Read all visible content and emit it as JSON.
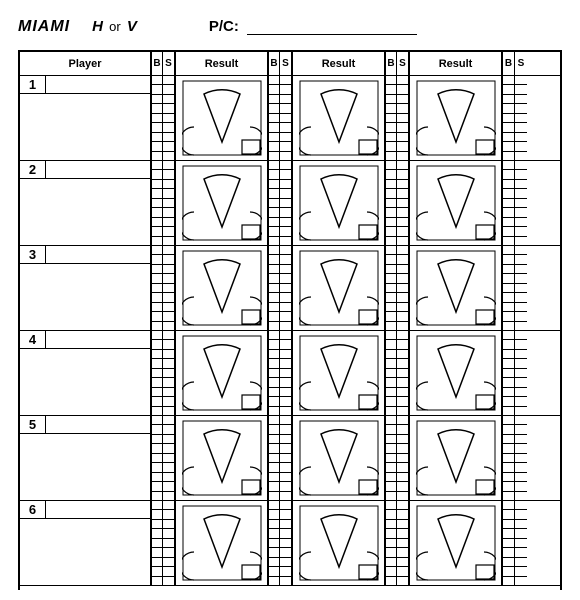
{
  "header": {
    "team": "MIAMI",
    "h": "H",
    "or": "or",
    "v": "V",
    "pc_label": "P/C:"
  },
  "columns": {
    "player": "Player",
    "b": "B",
    "s": "S",
    "result": "Result"
  },
  "layout": {
    "result_columns": 3,
    "rows": 6,
    "bs_cells_per_column": 9
  },
  "players": [
    {
      "num": "1"
    },
    {
      "num": "2"
    },
    {
      "num": "3"
    },
    {
      "num": "4"
    },
    {
      "num": "5"
    },
    {
      "num": "6"
    }
  ],
  "style": {
    "border_color": "#000000",
    "background": "#ffffff",
    "diamond": {
      "stroke": "#000000",
      "stroke_width": 1.5,
      "fill": "none"
    }
  }
}
